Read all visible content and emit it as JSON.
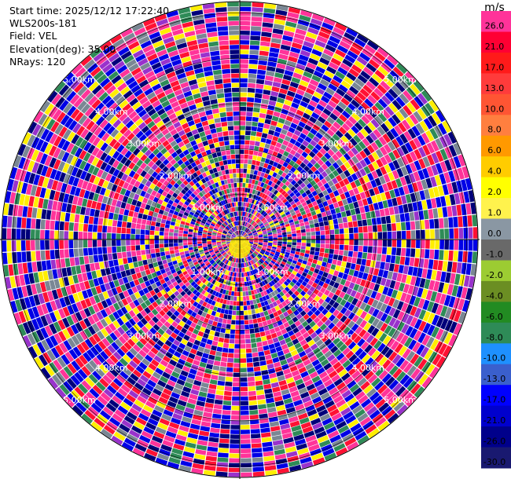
{
  "header": {
    "start_time": "Start time: 2025/12/12 17:22:40",
    "instrument": "WLS200s-181",
    "field": "Field: VEL",
    "elevation": "Elevation(deg): 35.00",
    "nrays": "NRays: 120"
  },
  "chart_data": {
    "type": "polar-ppi",
    "field": "VEL",
    "units": "m/s",
    "elevation_deg": 35.0,
    "n_rays": 120,
    "range_rings_km": [
      1.0,
      2.0,
      3.0,
      4.0,
      5.0
    ],
    "ring_labels": [
      "1.00km",
      "2.00km",
      "3.00km",
      "4.00km",
      "5.00km"
    ],
    "max_range_km": 5.25,
    "colorbar": {
      "label": "m/s",
      "ticks": [
        "26.0",
        "21.0",
        "17.0",
        "13.0",
        "10.0",
        "8.0",
        "6.0",
        "4.0",
        "2.0",
        "1.0",
        "0.0",
        "-1.0",
        "-2.0",
        "-4.0",
        "-6.0",
        "-8.0",
        "-10.0",
        "-13.0",
        "-17.0",
        "-21.0",
        "-26.0",
        "-30.0"
      ],
      "colors": [
        "#ff3399",
        "#ff0033",
        "#ff1a1a",
        "#ff3b3b",
        "#ff5533",
        "#ff7f3f",
        "#ff9900",
        "#ffcc00",
        "#ffff00",
        "#fff24d",
        "#8a97a3",
        "#696969",
        "#9ccc32",
        "#6b8e23",
        "#228b22",
        "#2e8b57",
        "#1e90ff",
        "#3a5fcd",
        "#0000ff",
        "#0000cd",
        "#00008b",
        "#191970"
      ]
    },
    "noise_classes": [
      "pink",
      "red",
      "blue",
      "navy",
      "yellow",
      "gray",
      "green",
      "purple"
    ]
  },
  "colors": {
    "pink": "#ff3399",
    "red": "#ff1133",
    "blue": "#0000e6",
    "navy": "#00007a",
    "yellow": "#ffee00",
    "gray": "#7a8794",
    "green": "#2e8b57",
    "purple": "#9932cc"
  }
}
